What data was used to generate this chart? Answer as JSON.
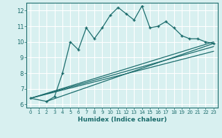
{
  "xlabel": "Humidex (Indice chaleur)",
  "bg_color": "#d8f0f0",
  "line_color": "#1a6b6b",
  "grid_color": "#ffffff",
  "xlim": [
    -0.5,
    23.5
  ],
  "ylim": [
    5.8,
    12.5
  ],
  "yticks": [
    6,
    7,
    8,
    9,
    10,
    11,
    12
  ],
  "xticks": [
    0,
    1,
    2,
    3,
    4,
    5,
    6,
    7,
    8,
    9,
    10,
    11,
    12,
    13,
    14,
    15,
    16,
    17,
    18,
    19,
    20,
    21,
    22,
    23
  ],
  "main_x": [
    0,
    2,
    3,
    4,
    5,
    6,
    7,
    8,
    9,
    10,
    11,
    12,
    13,
    14,
    15,
    16,
    17,
    18,
    19,
    20,
    21,
    22,
    23
  ],
  "main_y": [
    6.4,
    6.2,
    6.5,
    8.0,
    10.0,
    9.5,
    10.9,
    10.2,
    10.9,
    11.7,
    12.2,
    11.8,
    11.4,
    12.3,
    10.9,
    11.0,
    11.3,
    10.9,
    10.4,
    10.2,
    10.2,
    10.0,
    9.9
  ],
  "line2_x": [
    0,
    23
  ],
  "line2_y": [
    6.4,
    10.0
  ],
  "line3_x": [
    0,
    23
  ],
  "line3_y": [
    6.4,
    9.7
  ],
  "line4_x": [
    0,
    23
  ],
  "line4_y": [
    6.4,
    9.4
  ],
  "line5_x": [
    2,
    23
  ],
  "line5_y": [
    6.2,
    9.9
  ]
}
